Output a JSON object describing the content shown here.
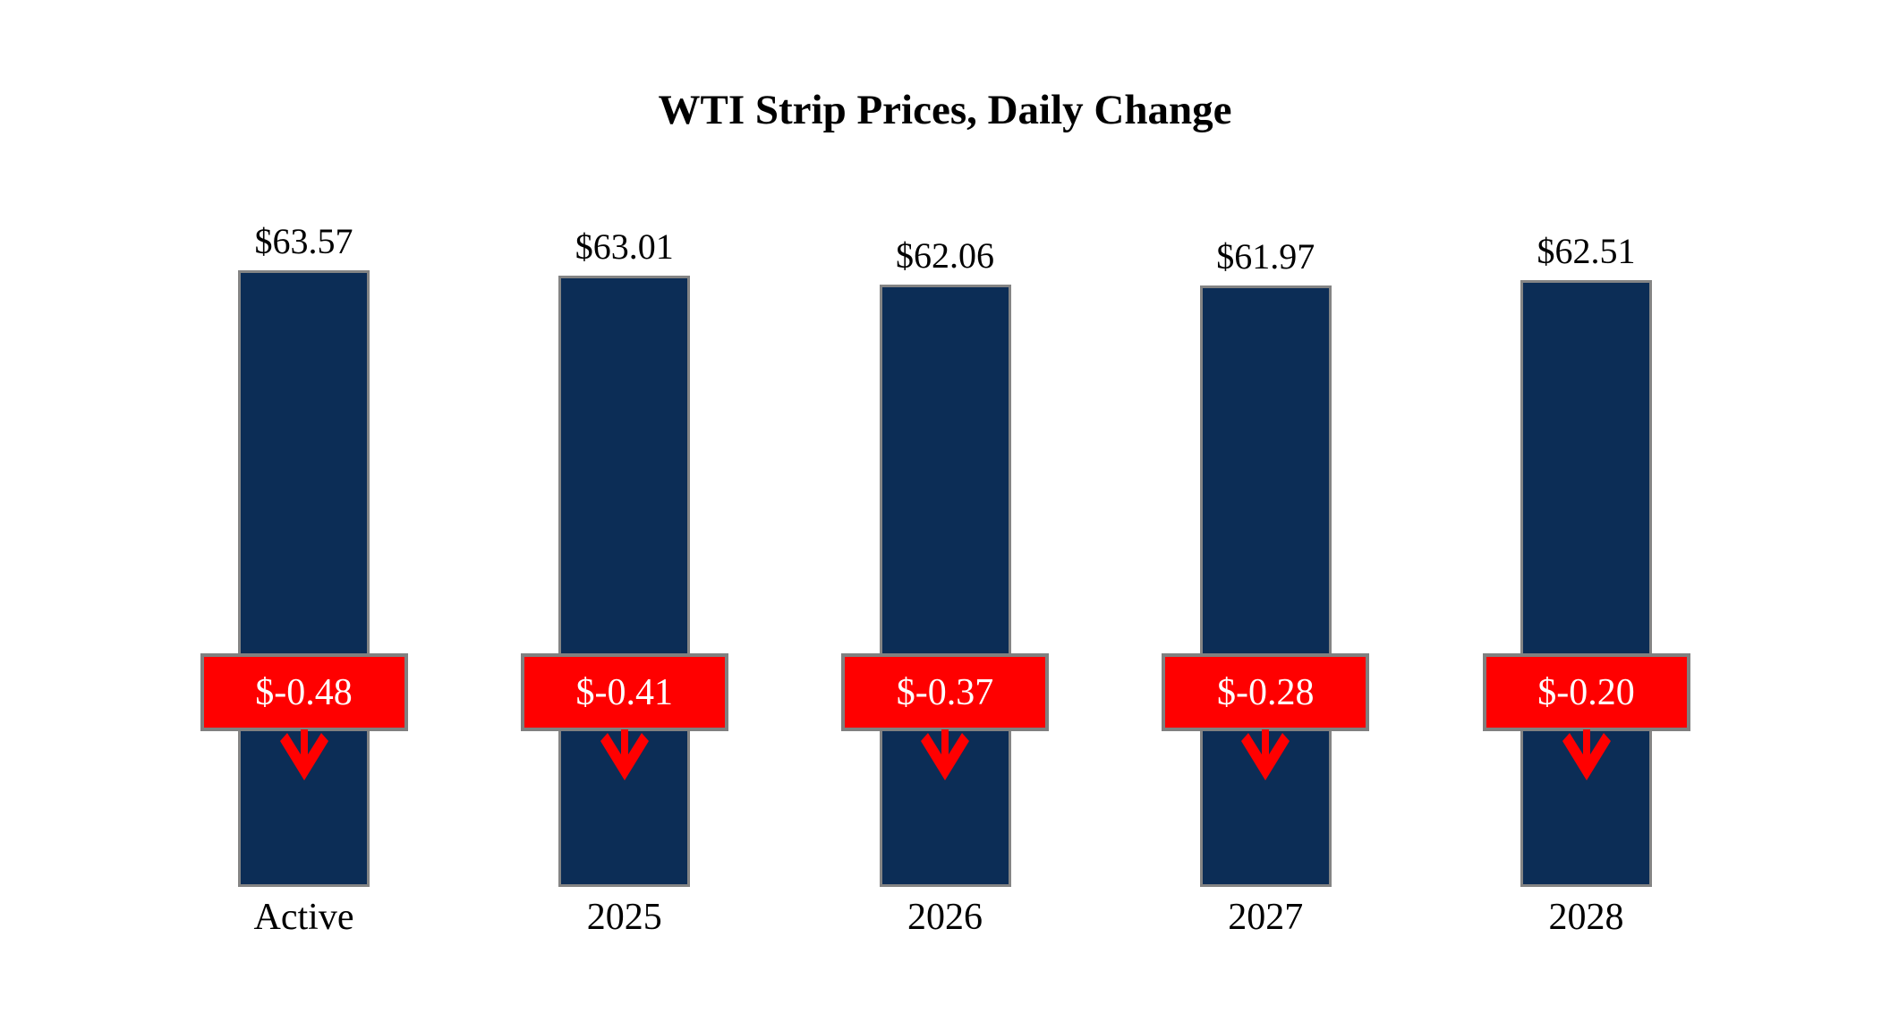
{
  "title": "WTI Strip Prices, Daily Change",
  "chart_data": {
    "type": "bar",
    "title": "WTI Strip Prices, Daily Change",
    "categories": [
      "Active",
      "2025",
      "2026",
      "2027",
      "2028"
    ],
    "series": [
      {
        "name": "WTI strip price",
        "values": [
          63.57,
          63.01,
          62.06,
          61.97,
          62.51
        ]
      },
      {
        "name": "Daily change",
        "values": [
          -0.48,
          -0.41,
          -0.37,
          -0.28,
          -0.2
        ]
      }
    ],
    "price_labels": [
      "$63.57",
      "$63.01",
      "$62.06",
      "$61.97",
      "$62.51"
    ],
    "change_labels": [
      "$-0.48",
      "$-0.41",
      "$-0.37",
      "$-0.28",
      "$-0.20"
    ],
    "change_direction": "down",
    "ylim": [
      0,
      65
    ],
    "grid": false,
    "legend_position": "none",
    "colors": {
      "bar_fill": "#0C2D56",
      "bar_border": "#848484",
      "change_box_fill": "#FF0000",
      "change_box_border": "#808080",
      "change_text": "#FFFFFF",
      "arrow": "#FF0000",
      "label_text": "#000000",
      "background": "#FFFFFF"
    }
  }
}
